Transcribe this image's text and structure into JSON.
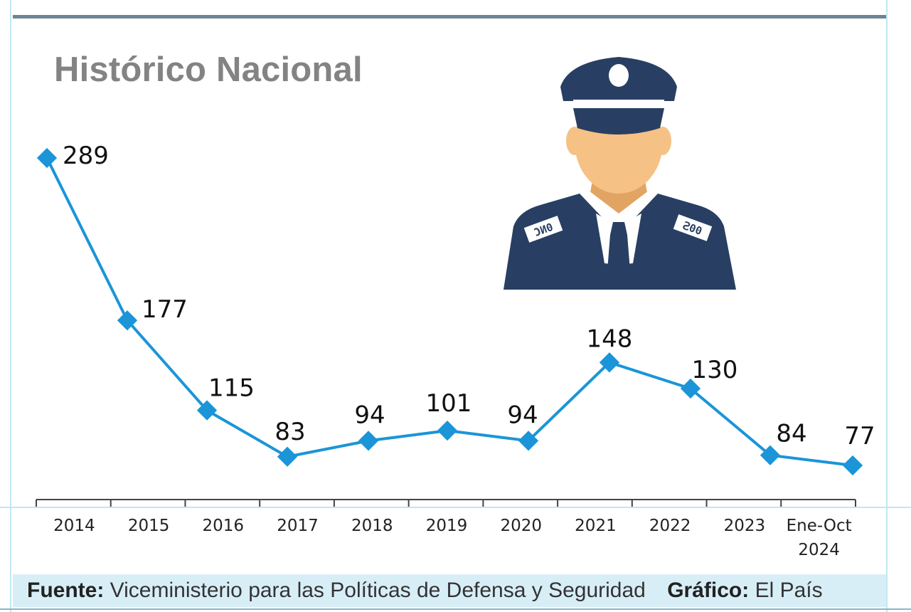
{
  "title": "Histórico Nacional",
  "colors": {
    "line": "#1b95d8",
    "uniform": "#283f63",
    "skin": "#f6c184",
    "axis": "#444444"
  },
  "illustration": {
    "icon": "police-officer-icon",
    "badge_left": "ƆИ0",
    "badge_right": "Ꙅ00"
  },
  "chart_data": {
    "type": "line",
    "title": "Histórico Nacional",
    "categories": [
      "2014",
      "2015",
      "2016",
      "2017",
      "2018",
      "2019",
      "2020",
      "2021",
      "2022",
      "2023",
      "Ene-Oct\n2024"
    ],
    "series": [
      {
        "values": [
          289,
          177,
          115,
          83,
          94,
          101,
          94,
          148,
          130,
          84,
          77
        ]
      }
    ],
    "data_labels": [
      "289",
      "177",
      "115",
      "83",
      "94",
      "101",
      "94",
      "148",
      "130",
      "84",
      "77"
    ],
    "ylim": [
      0,
      300
    ],
    "grid": false,
    "legend": "none"
  },
  "footer": {
    "source_label": "Fuente:",
    "source_value": "Viceministerio para las Políticas de Defensa y Seguridad",
    "credit_label": "Gráfico:",
    "credit_value": "El País"
  }
}
